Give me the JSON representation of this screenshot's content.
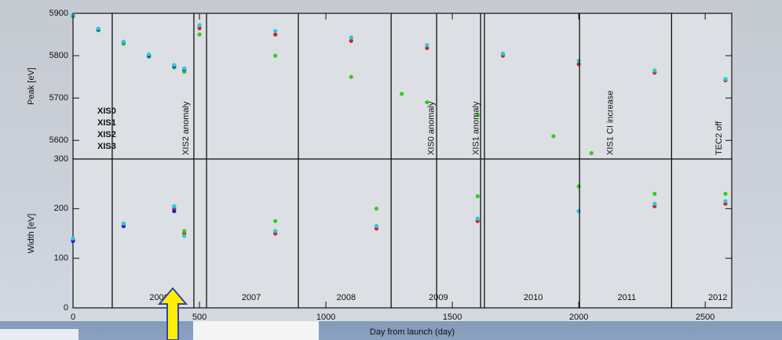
{
  "chart_data": [
    {
      "type": "scatter",
      "ylabel": "Peak [eV]",
      "xlim": [
        0,
        2605
      ],
      "ylim": [
        5556,
        5900
      ],
      "yticks": [
        5600,
        5700,
        5800,
        5900
      ],
      "legend": "left",
      "vlines": [
        155,
        478,
        528,
        891,
        1258,
        1438,
        1612,
        1627,
        2003,
        2367
      ],
      "annotations": [
        {
          "x": 448,
          "text": "XIS2 anomaly"
        },
        {
          "x": 1418,
          "text": "XIS0 anomaly"
        },
        {
          "x": 1595,
          "text": "XIS1 anomaly"
        },
        {
          "x": 2125,
          "text": "XIS1 CI increase"
        },
        {
          "x": 2555,
          "text": "TEC2 off"
        }
      ],
      "series": [
        {
          "name": "XIS0",
          "color": "#d42020",
          "x": [
            0,
            100,
            200,
            300,
            400,
            440,
            500,
            800,
            1100,
            1400,
            1700,
            2000,
            2300,
            2580
          ],
          "values": [
            5895,
            5862,
            5830,
            5800,
            5775,
            5765,
            5865,
            5850,
            5835,
            5818,
            5800,
            5780,
            5760,
            5742
          ]
        },
        {
          "name": "XIS1",
          "color": "#33cc22",
          "x": [
            0,
            100,
            200,
            300,
            400,
            440,
            500,
            800,
            1100,
            1300,
            1400,
            1600,
            1900,
            2050
          ],
          "values": [
            5893,
            5860,
            5828,
            5798,
            5772,
            5762,
            5850,
            5800,
            5750,
            5710,
            5690,
            5660,
            5610,
            5570
          ]
        },
        {
          "name": "XIS2",
          "color": "#2020c8",
          "x": [
            0,
            100,
            200,
            300,
            400,
            440
          ],
          "values": [
            5895,
            5862,
            5832,
            5800,
            5775,
            5768
          ]
        },
        {
          "name": "XIS3",
          "color": "#22ccdd",
          "x": [
            0,
            100,
            200,
            300,
            400,
            440,
            500,
            800,
            1100,
            1400,
            1700,
            2000,
            2300,
            2580
          ],
          "values": [
            5896,
            5864,
            5833,
            5803,
            5778,
            5770,
            5872,
            5858,
            5843,
            5825,
            5805,
            5788,
            5765,
            5745
          ]
        }
      ]
    },
    {
      "type": "scatter",
      "ylabel": "Width [eV]",
      "xlabel": "Day from launch (day)",
      "xlim": [
        0,
        2605
      ],
      "ylim": [
        0,
        300
      ],
      "yticks": [
        0,
        100,
        200,
        300
      ],
      "xticks": [
        0,
        500,
        1000,
        1500,
        2000,
        2500
      ],
      "year_labels": [
        {
          "x": 340,
          "text": "2006"
        },
        {
          "x": 705,
          "text": "2007"
        },
        {
          "x": 1080,
          "text": "2008"
        },
        {
          "x": 1445,
          "text": "2009"
        },
        {
          "x": 1820,
          "text": "2010"
        },
        {
          "x": 2190,
          "text": "2011"
        },
        {
          "x": 2550,
          "text": "2012"
        }
      ],
      "series": [
        {
          "color": "#d42020",
          "x": [
            0,
            200,
            400,
            440,
            800,
            1200,
            1600,
            2000,
            2300,
            2580
          ],
          "values": [
            135,
            165,
            200,
            150,
            150,
            160,
            175,
            195,
            205,
            210
          ]
        },
        {
          "color": "#33cc22",
          "x": [
            0,
            200,
            400,
            440,
            800,
            1200,
            1600,
            2000,
            2300,
            2580
          ],
          "values": [
            138,
            170,
            205,
            155,
            175,
            200,
            225,
            245,
            230,
            230
          ]
        },
        {
          "color": "#2020c8",
          "x": [
            0,
            200,
            400
          ],
          "values": [
            135,
            165,
            195
          ]
        },
        {
          "color": "#22ccdd",
          "x": [
            0,
            200,
            400,
            440,
            800,
            1200,
            1600,
            2000,
            2300,
            2580
          ],
          "values": [
            140,
            170,
            205,
            145,
            155,
            165,
            180,
            195,
            210,
            215
          ]
        }
      ]
    }
  ]
}
